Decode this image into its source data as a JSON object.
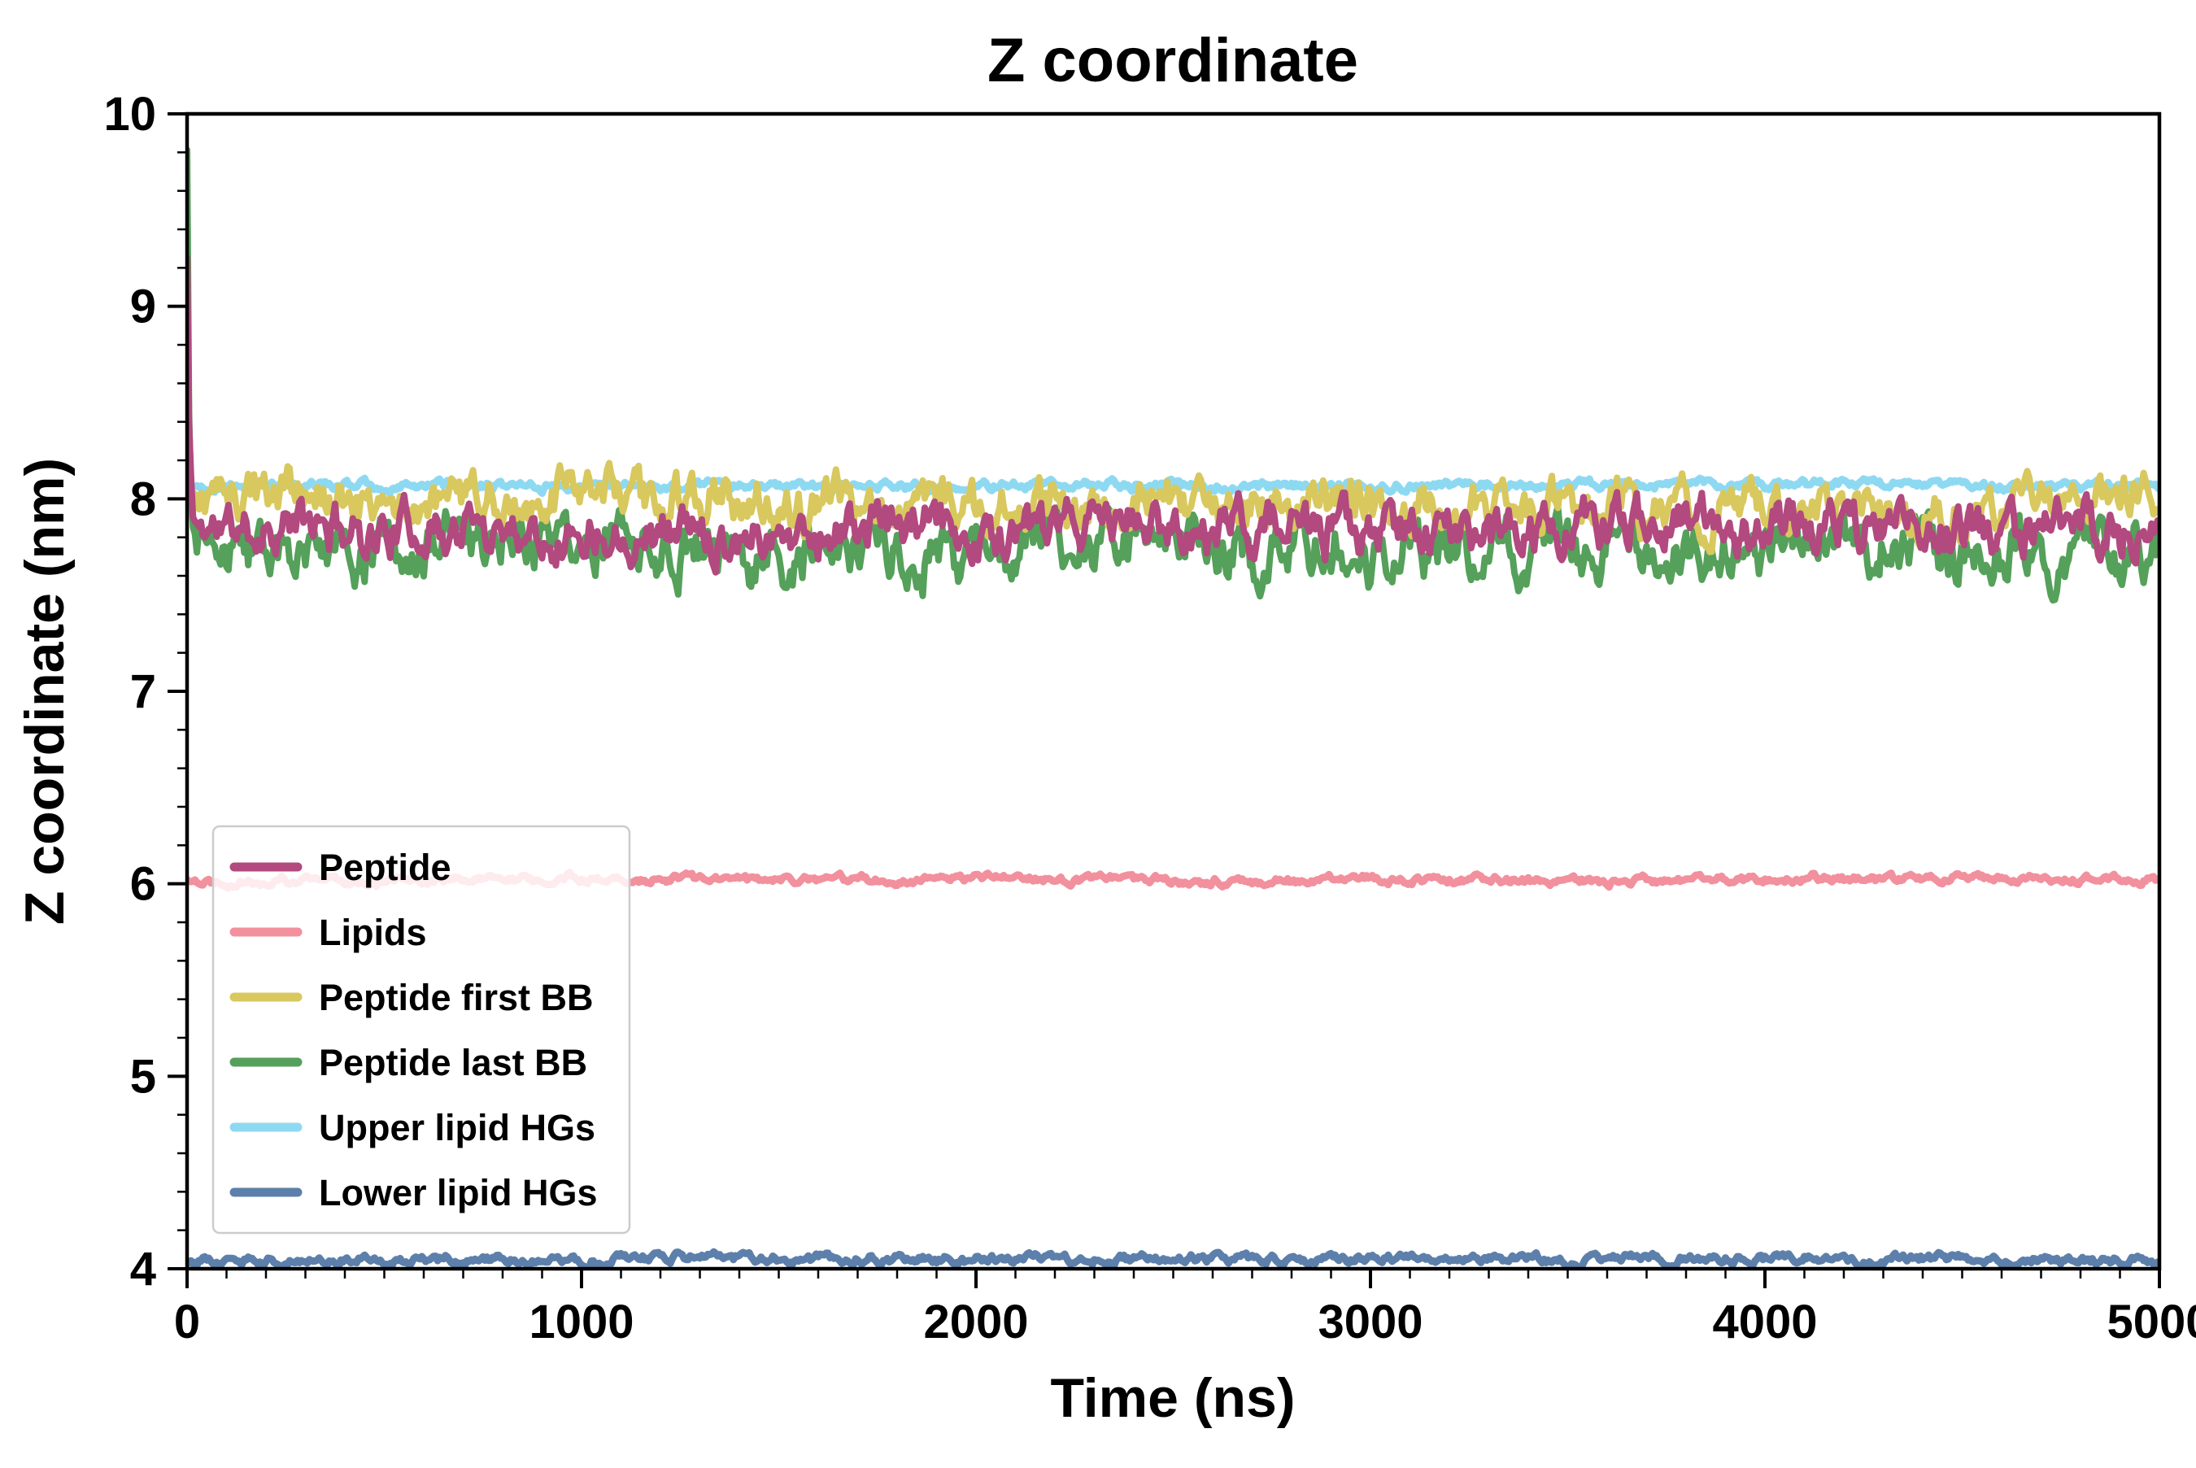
{
  "chart_data": {
    "type": "line",
    "title": "Z coordinate",
    "xlabel": "Time (ns)",
    "ylabel": "Z coordinate (nm)",
    "xlim": [
      0,
      5000
    ],
    "ylim": [
      4,
      10
    ],
    "x_ticks": [
      0,
      1000,
      2000,
      3000,
      4000,
      5000
    ],
    "y_ticks": [
      4,
      5,
      6,
      7,
      8,
      9,
      10
    ],
    "x_minor_step": 100,
    "y_minor_step": 0.2,
    "grid": false,
    "background": "#ffffff",
    "axis_color": "#000000",
    "legend": {
      "position": "center-left",
      "border_color": "#cccccc",
      "fill": "rgba(255,255,255,0.82)"
    },
    "series": [
      {
        "name": "Peptide",
        "color": "#b2497f",
        "mean": 7.85,
        "noise": 0.18,
        "start": 9.25,
        "decay": 5,
        "seed": 11,
        "width": 8
      },
      {
        "name": "Lipids",
        "color": "#f2909e",
        "mean": 6.02,
        "noise": 0.03,
        "start": 6.02,
        "decay": 1,
        "seed": 22,
        "width": 9
      },
      {
        "name": "Peptide first BB",
        "color": "#d8c85e",
        "mean": 7.97,
        "noise": 0.18,
        "start": 8.55,
        "decay": 5,
        "seed": 33,
        "width": 8
      },
      {
        "name": "Peptide last BB",
        "color": "#55a05a",
        "mean": 7.75,
        "noise": 0.22,
        "start": 9.75,
        "decay": 5,
        "seed": 44,
        "width": 8
      },
      {
        "name": "Upper lipid HGs",
        "color": "#8ed9f2",
        "mean": 8.07,
        "noise": 0.035,
        "start": 8.07,
        "decay": 1,
        "seed": 55,
        "width": 9
      },
      {
        "name": "Lower lipid HGs",
        "color": "#5c80ab",
        "mean": 4.05,
        "noise": 0.035,
        "start": 4.05,
        "decay": 1,
        "seed": 66,
        "width": 9
      }
    ],
    "draw_order": [
      "Lower lipid HGs",
      "Upper lipid HGs",
      "Lipids",
      "Peptide last BB",
      "Peptide first BB",
      "Peptide"
    ],
    "sampling": {
      "t_start": 0,
      "t_end": 5000,
      "dt": 5
    }
  }
}
